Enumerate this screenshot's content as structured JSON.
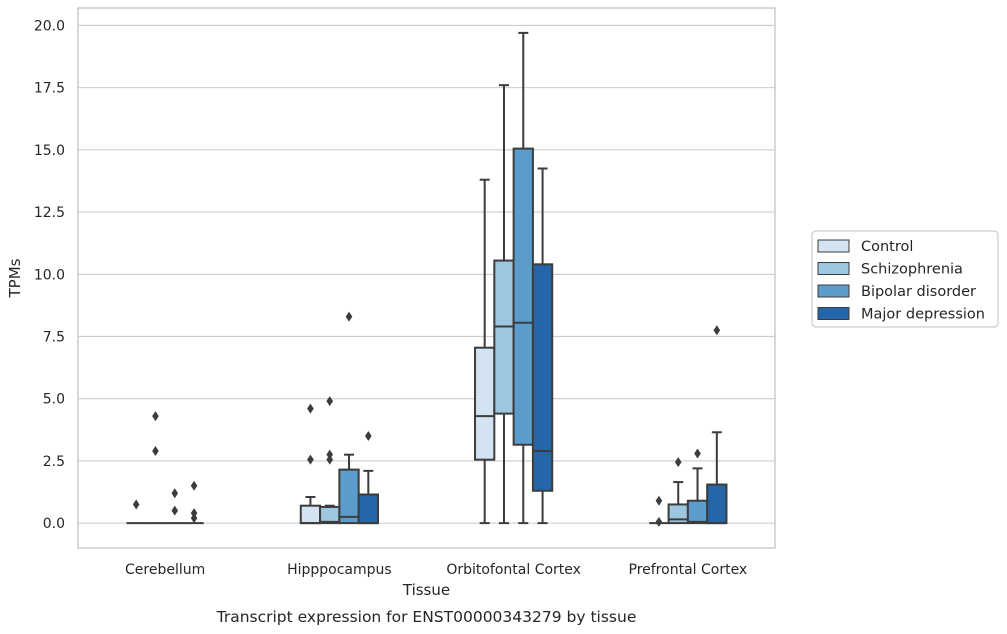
{
  "chart_data": {
    "type": "box",
    "title": "",
    "caption": "Transcript expression for ENST00000343279 by tissue",
    "xlabel": "Tissue",
    "ylabel": "TPMs",
    "ylim": [
      -1.0,
      20.7
    ],
    "yticks": [
      "0.0",
      "2.5",
      "5.0",
      "7.5",
      "10.0",
      "12.5",
      "15.0",
      "17.5",
      "20.0"
    ],
    "grid": "horizontal",
    "legend_position": "right",
    "categories": [
      "Cerebellum",
      "Hipppocampus",
      "Orbitofontal Cortex",
      "Prefrontal Cortex"
    ],
    "series": [
      {
        "name": "Control",
        "color": "#d4e3f2",
        "boxes": [
          {
            "q1": 0.0,
            "median": 0.0,
            "q3": 0.0,
            "whisker_low": 0.0,
            "whisker_high": 0.0,
            "outliers": [
              0.75
            ]
          },
          {
            "q1": 0.0,
            "median": 0.0,
            "q3": 0.7,
            "whisker_low": 0.0,
            "whisker_high": 1.05,
            "outliers": [
              4.6,
              2.55
            ]
          },
          {
            "q1": 2.55,
            "median": 4.3,
            "q3": 7.05,
            "whisker_low": 0.0,
            "whisker_high": 13.8,
            "outliers": []
          },
          {
            "q1": 0.0,
            "median": 0.0,
            "q3": 0.0,
            "whisker_low": 0.0,
            "whisker_high": 0.0,
            "outliers": [
              0.9,
              0.05
            ]
          }
        ]
      },
      {
        "name": "Schizophrenia",
        "color": "#9dc6e0",
        "boxes": [
          {
            "q1": 0.0,
            "median": 0.0,
            "q3": 0.0,
            "whisker_low": 0.0,
            "whisker_high": 0.0,
            "outliers": [
              4.3,
              2.9
            ]
          },
          {
            "q1": 0.0,
            "median": 0.05,
            "q3": 0.65,
            "whisker_low": 0.0,
            "whisker_high": 0.7,
            "outliers": [
              4.9,
              2.75,
              2.55
            ]
          },
          {
            "q1": 4.4,
            "median": 7.9,
            "q3": 10.55,
            "whisker_low": 0.0,
            "whisker_high": 17.6,
            "outliers": []
          },
          {
            "q1": 0.0,
            "median": 0.15,
            "q3": 0.75,
            "whisker_low": 0.0,
            "whisker_high": 1.65,
            "outliers": [
              2.45
            ]
          }
        ]
      },
      {
        "name": "Bipolar disorder",
        "color": "#5a9ccb",
        "boxes": [
          {
            "q1": 0.0,
            "median": 0.0,
            "q3": 0.0,
            "whisker_low": 0.0,
            "whisker_high": 0.0,
            "outliers": [
              1.2,
              0.5
            ]
          },
          {
            "q1": 0.0,
            "median": 0.25,
            "q3": 2.15,
            "whisker_low": 0.0,
            "whisker_high": 2.75,
            "outliers": [
              8.3
            ]
          },
          {
            "q1": 3.15,
            "median": 8.05,
            "q3": 15.05,
            "whisker_low": 0.0,
            "whisker_high": 19.7,
            "outliers": []
          },
          {
            "q1": 0.0,
            "median": 0.05,
            "q3": 0.9,
            "whisker_low": 0.0,
            "whisker_high": 2.2,
            "outliers": [
              2.8
            ]
          }
        ]
      },
      {
        "name": "Major depression",
        "color": "#2466a9",
        "boxes": [
          {
            "q1": 0.0,
            "median": 0.0,
            "q3": 0.0,
            "whisker_low": 0.0,
            "whisker_high": 0.0,
            "outliers": [
              1.5,
              0.4,
              0.2
            ]
          },
          {
            "q1": 0.0,
            "median": 0.0,
            "q3": 1.15,
            "whisker_low": 0.0,
            "whisker_high": 2.1,
            "outliers": [
              3.5
            ]
          },
          {
            "q1": 1.3,
            "median": 2.9,
            "q3": 10.4,
            "whisker_low": 0.0,
            "whisker_high": 14.25,
            "outliers": []
          },
          {
            "q1": 0.0,
            "median": 0.0,
            "q3": 1.55,
            "whisker_low": 0.0,
            "whisker_high": 3.65,
            "outliers": [
              7.75
            ]
          }
        ]
      }
    ]
  }
}
